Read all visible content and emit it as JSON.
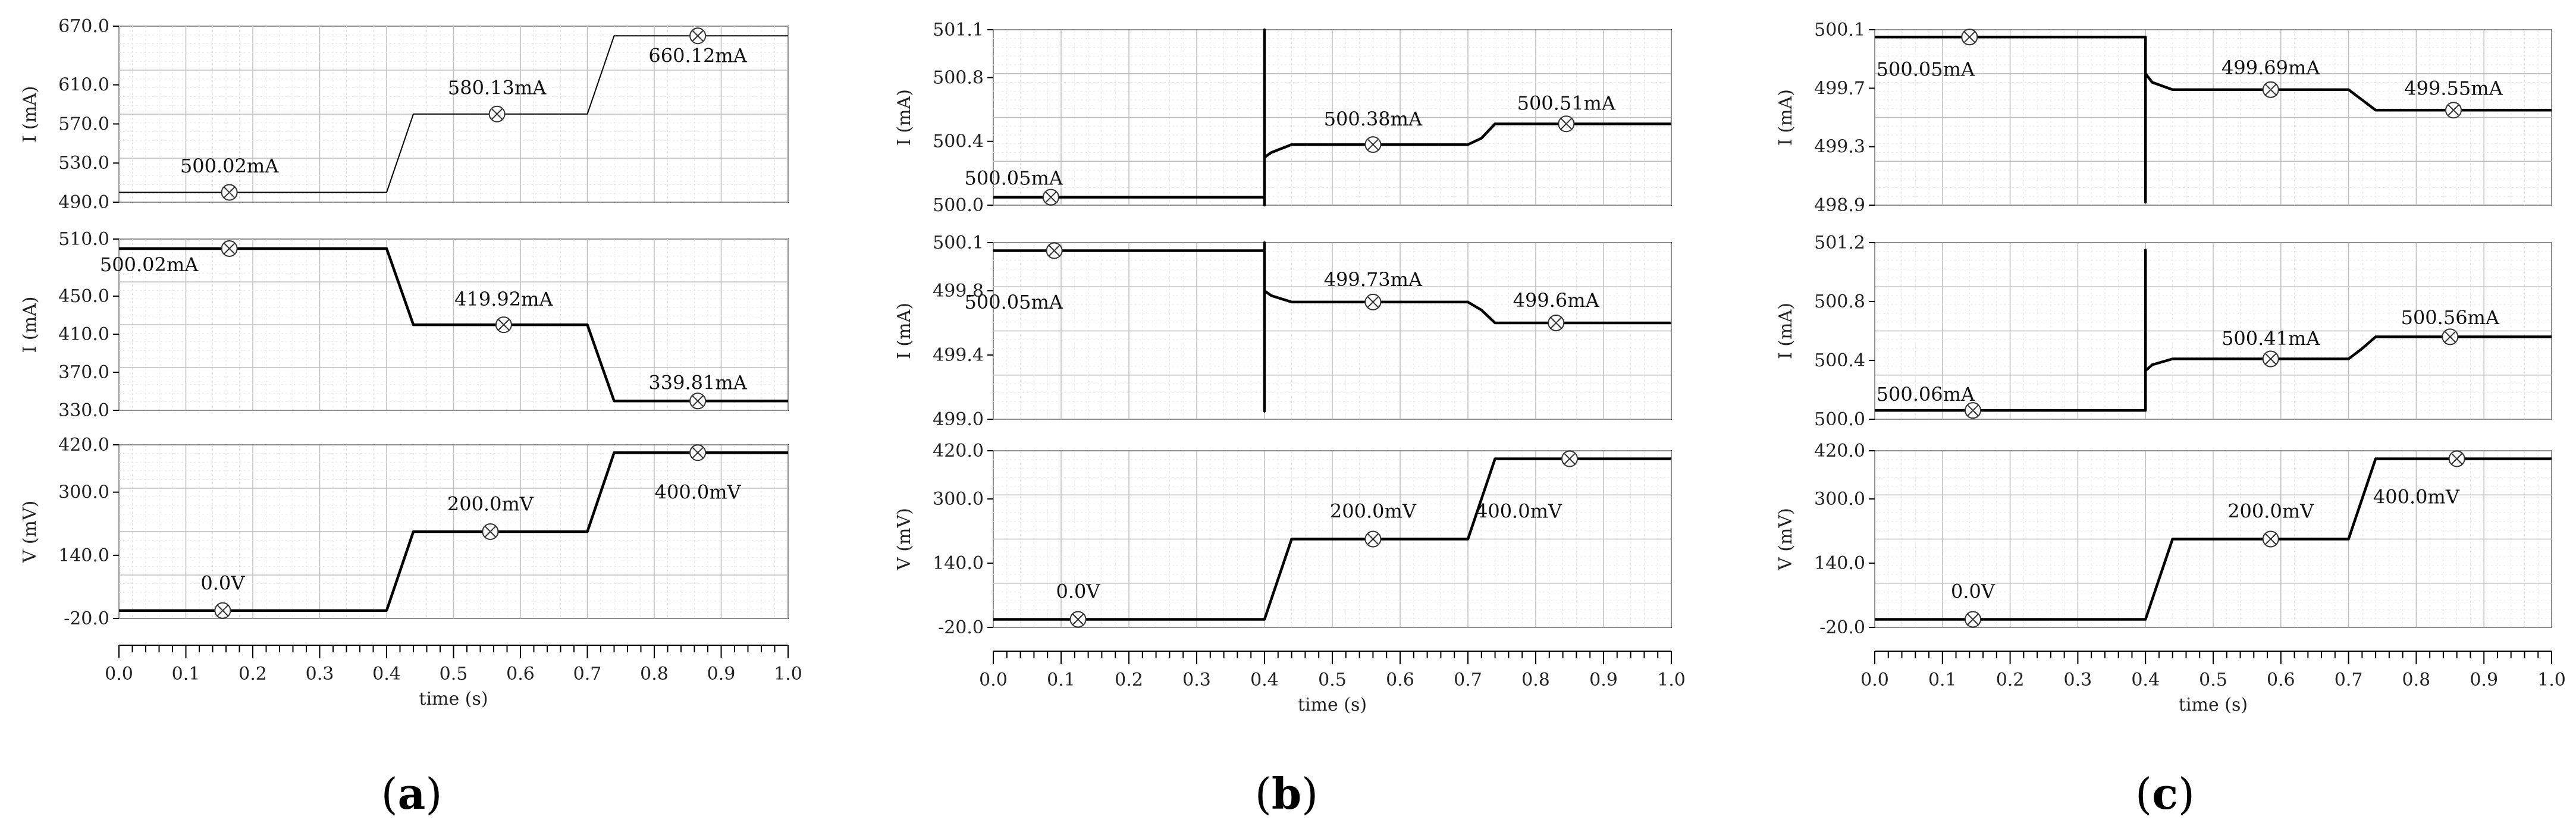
{
  "chart_data": [
    {
      "type": "line",
      "panel_label": "(a)",
      "panel_prefix": "(",
      "panel_letter": "a",
      "panel_suffix": ")",
      "xlabel": "time (s)",
      "x_ticks": [
        "0.0",
        "0.1",
        "0.2",
        "0.3",
        "0.4",
        "0.5",
        "0.6",
        "0.7",
        "0.8",
        "0.9",
        "1.0"
      ],
      "xlim": [
        0,
        1
      ],
      "subplots": [
        {
          "ylabel": "I (mA)",
          "ylim": [
            490,
            670
          ],
          "y_ticks": [
            "670.0",
            "610.0",
            "570.0",
            "530.0",
            "490.0"
          ],
          "y_tick_values": [
            670,
            610,
            570,
            530,
            490
          ],
          "series_style": "thin",
          "series": {
            "x": [
              0,
              0.4,
              0.44,
              0.7,
              0.74,
              1.0
            ],
            "y": [
              500.02,
              500.02,
              580.13,
              580.13,
              660.12,
              660.12
            ]
          },
          "annotations": [
            {
              "text": "500.02mA",
              "x": 0.165,
              "y": 500.02,
              "label_x": 0.165,
              "label_y": 527
            },
            {
              "text": "580.13mA",
              "x": 0.565,
              "y": 580.13,
              "label_x": 0.565,
              "label_y": 607
            },
            {
              "text": "660.12mA",
              "x": 0.865,
              "y": 660.12,
              "label_x": 0.865,
              "label_y": 640
            }
          ]
        },
        {
          "ylabel": "I (mA)",
          "ylim": [
            330,
            510
          ],
          "y_ticks": [
            "510.0",
            "450.0",
            "410.0",
            "370.0",
            "330.0"
          ],
          "y_tick_values": [
            510,
            450,
            410,
            370,
            330
          ],
          "series_style": "thick",
          "series": {
            "x": [
              0,
              0.4,
              0.44,
              0.7,
              0.74,
              1.0
            ],
            "y": [
              500.02,
              500.02,
              419.92,
              419.92,
              339.81,
              339.81
            ]
          },
          "annotations": [
            {
              "text": "500.02mA",
              "x": 0.165,
              "y": 500.02,
              "label_x": 0.045,
              "label_y": 483
            },
            {
              "text": "419.92mA",
              "x": 0.575,
              "y": 419.92,
              "label_x": 0.575,
              "label_y": 447
            },
            {
              "text": "339.81mA",
              "x": 0.865,
              "y": 339.81,
              "label_x": 0.865,
              "label_y": 359
            }
          ]
        },
        {
          "ylabel": "V (mV)",
          "ylim": [
            -20,
            420
          ],
          "y_ticks": [
            "420.0",
            "300.0",
            "140.0",
            "-20.0"
          ],
          "y_tick_values": [
            420,
            300,
            140,
            -20
          ],
          "series_style": "thick",
          "series": {
            "x": [
              0,
              0.4,
              0.44,
              0.7,
              0.74,
              1.0
            ],
            "y": [
              0,
              0,
              200,
              200,
              400,
              400
            ]
          },
          "annotations": [
            {
              "text": "0.0V",
              "x": 0.155,
              "y": 0,
              "label_x": 0.155,
              "label_y": 70
            },
            {
              "text": "200.0mV",
              "x": 0.555,
              "y": 200,
              "label_x": 0.555,
              "label_y": 270
            },
            {
              "text": "400.0mV",
              "x": 0.865,
              "y": 400,
              "label_x": 0.865,
              "label_y": 300
            }
          ]
        }
      ]
    },
    {
      "type": "line",
      "panel_label": "(b)",
      "panel_prefix": "(",
      "panel_letter": "b",
      "panel_suffix": ")",
      "xlabel": "time (s)",
      "x_ticks": [
        "0.0",
        "0.1",
        "0.2",
        "0.3",
        "0.4",
        "0.5",
        "0.6",
        "0.7",
        "0.8",
        "0.9",
        "1.0"
      ],
      "xlim": [
        0,
        1
      ],
      "subplots": [
        {
          "ylabel": "I (mA)",
          "ylim": [
            500.0,
            501.1
          ],
          "y_ticks": [
            "501.1",
            "500.8",
            "500.4",
            "500.0"
          ],
          "y_tick_values": [
            501.1,
            500.8,
            500.4,
            500.0
          ],
          "series_style": "thick",
          "series": {
            "x": [
              0,
              0.4,
              0.4,
              0.4,
              0.4,
              0.41,
              0.44,
              0.7,
              0.72,
              0.74,
              1.0
            ],
            "y": [
              500.05,
              500.05,
              501.1,
              500.0,
              500.3,
              500.33,
              500.38,
              500.38,
              500.42,
              500.51,
              500.51
            ]
          },
          "annotations": [
            {
              "text": "500.05mA",
              "x": 0.085,
              "y": 500.05,
              "label_x": 0.03,
              "label_y": 500.17
            },
            {
              "text": "500.38mA",
              "x": 0.56,
              "y": 500.38,
              "label_x": 0.56,
              "label_y": 500.54
            },
            {
              "text": "500.51mA",
              "x": 0.845,
              "y": 500.51,
              "label_x": 0.845,
              "label_y": 500.64
            }
          ]
        },
        {
          "ylabel": "I (mA)",
          "ylim": [
            499.0,
            500.1
          ],
          "y_ticks": [
            "500.1",
            "499.8",
            "499.4",
            "499.0"
          ],
          "y_tick_values": [
            500.1,
            499.8,
            499.4,
            499.0
          ],
          "series_style": "thick",
          "series": {
            "x": [
              0,
              0.4,
              0.4,
              0.4,
              0.4,
              0.41,
              0.44,
              0.7,
              0.72,
              0.74,
              1.0
            ],
            "y": [
              500.05,
              500.05,
              500.1,
              499.05,
              499.8,
              499.77,
              499.73,
              499.73,
              499.68,
              499.6,
              499.6
            ]
          },
          "annotations": [
            {
              "text": "500.05mA",
              "x": 0.09,
              "y": 500.05,
              "label_x": 0.03,
              "label_y": 499.73
            },
            {
              "text": "499.73mA",
              "x": 0.56,
              "y": 499.73,
              "label_x": 0.56,
              "label_y": 499.87
            },
            {
              "text": "499.6mA",
              "x": 0.83,
              "y": 499.6,
              "label_x": 0.83,
              "label_y": 499.74
            }
          ]
        },
        {
          "ylabel": "V (mV)",
          "ylim": [
            -20,
            420
          ],
          "y_ticks": [
            "420.0",
            "300.0",
            "140.0",
            "-20.0"
          ],
          "y_tick_values": [
            420,
            300,
            140,
            -20
          ],
          "series_style": "thick",
          "series": {
            "x": [
              0,
              0.4,
              0.44,
              0.7,
              0.74,
              1.0
            ],
            "y": [
              0,
              0,
              200,
              200,
              400,
              400
            ]
          },
          "annotations": [
            {
              "text": "0.0V",
              "x": 0.125,
              "y": 0,
              "label_x": 0.125,
              "label_y": 70
            },
            {
              "text": "200.0mV",
              "x": 0.56,
              "y": 200,
              "label_x": 0.56,
              "label_y": 270
            },
            {
              "text": "400.0mV",
              "x": 0.85,
              "y": 400,
              "label_x": 0.775,
              "label_y": 270
            }
          ]
        }
      ]
    },
    {
      "type": "line",
      "panel_label": "(c)",
      "panel_prefix": "(",
      "panel_letter": "c",
      "panel_suffix": ")",
      "xlabel": "time (s)",
      "x_ticks": [
        "0.0",
        "0.1",
        "0.2",
        "0.3",
        "0.4",
        "0.5",
        "0.6",
        "0.7",
        "0.8",
        "0.9",
        "1.0"
      ],
      "xlim": [
        0,
        1
      ],
      "subplots": [
        {
          "ylabel": "I (mA)",
          "ylim": [
            498.9,
            500.1
          ],
          "y_ticks": [
            "500.1",
            "499.7",
            "499.3",
            "498.9"
          ],
          "y_tick_values": [
            500.1,
            499.7,
            499.3,
            498.9
          ],
          "series_style": "thick",
          "series": {
            "x": [
              0,
              0.4,
              0.4,
              0.4,
              0.41,
              0.44,
              0.7,
              0.72,
              0.74,
              1.0
            ],
            "y": [
              500.05,
              500.05,
              498.92,
              499.8,
              499.74,
              499.69,
              499.69,
              499.62,
              499.55,
              499.55
            ]
          },
          "annotations": [
            {
              "text": "500.05mA",
              "x": 0.14,
              "y": 500.05,
              "label_x": 0.075,
              "label_y": 499.83
            },
            {
              "text": "499.69mA",
              "x": 0.585,
              "y": 499.69,
              "label_x": 0.585,
              "label_y": 499.84
            },
            {
              "text": "499.55mA",
              "x": 0.855,
              "y": 499.55,
              "label_x": 0.855,
              "label_y": 499.7
            }
          ]
        },
        {
          "ylabel": "I (mA)",
          "ylim": [
            500.0,
            501.2
          ],
          "y_ticks": [
            "501.2",
            "500.8",
            "500.4",
            "500.0"
          ],
          "y_tick_values": [
            501.2,
            500.8,
            500.4,
            500.0
          ],
          "series_style": "thick",
          "series": {
            "x": [
              0,
              0.4,
              0.4,
              0.4,
              0.41,
              0.44,
              0.7,
              0.72,
              0.74,
              1.0
            ],
            "y": [
              500.06,
              500.06,
              501.15,
              500.33,
              500.37,
              500.41,
              500.41,
              500.48,
              500.56,
              500.56
            ]
          },
          "annotations": [
            {
              "text": "500.06mA",
              "x": 0.145,
              "y": 500.06,
              "label_x": 0.075,
              "label_y": 500.17
            },
            {
              "text": "500.41mA",
              "x": 0.585,
              "y": 500.41,
              "label_x": 0.585,
              "label_y": 500.55
            },
            {
              "text": "500.56mA",
              "x": 0.85,
              "y": 500.56,
              "label_x": 0.85,
              "label_y": 500.69
            }
          ]
        },
        {
          "ylabel": "V (mV)",
          "ylim": [
            -20,
            420
          ],
          "y_ticks": [
            "420.0",
            "300.0",
            "140.0",
            "-20.0"
          ],
          "y_tick_values": [
            420,
            300,
            140,
            -20
          ],
          "series_style": "thick",
          "series": {
            "x": [
              0,
              0.4,
              0.44,
              0.7,
              0.74,
              1.0
            ],
            "y": [
              0,
              0,
              200,
              200,
              400,
              400
            ]
          },
          "annotations": [
            {
              "text": "0.0V",
              "x": 0.145,
              "y": 0,
              "label_x": 0.145,
              "label_y": 70
            },
            {
              "text": "200.0mV",
              "x": 0.585,
              "y": 200,
              "label_x": 0.585,
              "label_y": 270
            },
            {
              "text": "400.0mV",
              "x": 0.86,
              "y": 400,
              "label_x": 0.8,
              "label_y": 305
            }
          ]
        }
      ]
    }
  ]
}
